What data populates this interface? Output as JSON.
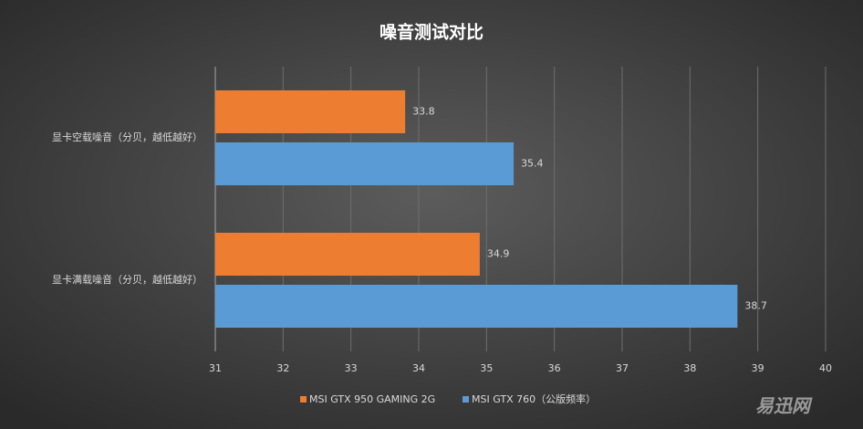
{
  "chart_data": {
    "type": "barh",
    "title": "噪音测试对比",
    "categories": [
      "显卡空载噪音（分贝，越低越好）",
      "显卡满载噪音（分贝，越低越好）"
    ],
    "series": [
      {
        "name": "MSI GTX 950 GAMING 2G",
        "color": "#ed7d31",
        "values": [
          33.8,
          34.9
        ]
      },
      {
        "name": "MSI GTX 760（公版频率）",
        "color": "#5b9bd5",
        "values": [
          35.4,
          38.7
        ]
      }
    ],
    "xlim": [
      31,
      40
    ],
    "xticks": [
      31,
      32,
      33,
      34,
      35,
      36,
      37,
      38,
      39,
      40
    ],
    "grid": true,
    "legend": "bottom",
    "watermark": "易迅网"
  }
}
